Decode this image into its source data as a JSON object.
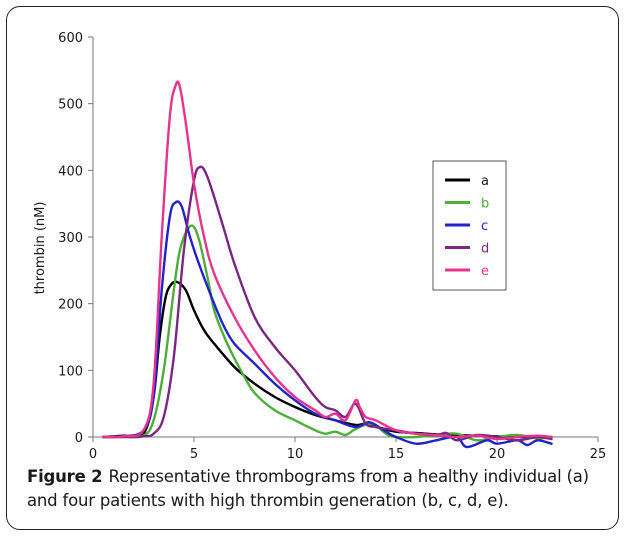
{
  "caption": {
    "label": "Figure 2",
    "text": "Representative thrombograms from a healthy individual (a) and four patients with high thrombin generation (b, c, d, e)."
  },
  "chart_data": {
    "type": "line",
    "title": "",
    "xlabel": "",
    "ylabel": "thrombin (nM)",
    "xlim": [
      0,
      25
    ],
    "ylim": [
      0,
      600
    ],
    "xticks": [
      0,
      5,
      10,
      15,
      20,
      25
    ],
    "yticks": [
      0,
      100,
      200,
      300,
      400,
      500,
      600
    ],
    "grid": false,
    "legend_position": "right",
    "series": [
      {
        "name": "a",
        "color": "#000000",
        "x": [
          0.5,
          1.5,
          2.5,
          3.0,
          3.3,
          3.6,
          3.9,
          4.2,
          4.6,
          5.0,
          5.5,
          6.0,
          7.0,
          8.0,
          9.0,
          10.0,
          11.0,
          12.0,
          13.0,
          13.5,
          14.0,
          15.0,
          16.0,
          17.0,
          18.0,
          19.0,
          20.0,
          21.0,
          22.0,
          22.7
        ],
        "values": [
          0,
          2,
          5,
          60,
          150,
          210,
          230,
          232,
          220,
          190,
          160,
          140,
          105,
          80,
          60,
          45,
          33,
          25,
          18,
          20,
          15,
          8,
          6,
          4,
          3,
          2,
          1,
          0,
          0,
          0
        ]
      },
      {
        "name": "b",
        "color": "#4caf37",
        "x": [
          0.5,
          1.5,
          2.5,
          3.0,
          3.5,
          4.0,
          4.3,
          4.7,
          5.0,
          5.3,
          5.7,
          6.0,
          6.5,
          7.0,
          7.5,
          8.0,
          9.0,
          10.0,
          11.0,
          11.5,
          12.0,
          12.5,
          13.0,
          13.8,
          14.5,
          15.0,
          16.0,
          17.0,
          18.0,
          19.0,
          20.0,
          21.0,
          22.0,
          22.7
        ],
        "values": [
          0,
          0,
          2,
          25,
          100,
          220,
          280,
          312,
          315,
          290,
          235,
          190,
          150,
          118,
          90,
          66,
          40,
          25,
          10,
          5,
          8,
          3,
          12,
          20,
          5,
          0,
          0,
          3,
          5,
          -5,
          0,
          3,
          -2,
          0
        ]
      },
      {
        "name": "c",
        "color": "#2222cc",
        "x": [
          0.5,
          1.5,
          2.5,
          3.0,
          3.4,
          3.8,
          4.1,
          4.4,
          4.8,
          5.3,
          6.0,
          6.5,
          7.0,
          8.0,
          9.0,
          10.0,
          11.0,
          12.0,
          13.0,
          13.7,
          14.5,
          15.0,
          16.0,
          17.0,
          18.0,
          18.5,
          19.5,
          20.0,
          21.0,
          21.5,
          22.0,
          22.7
        ],
        "values": [
          0,
          1,
          10,
          60,
          220,
          330,
          352,
          345,
          300,
          255,
          200,
          165,
          140,
          110,
          80,
          55,
          35,
          25,
          15,
          22,
          8,
          0,
          -10,
          -5,
          0,
          -15,
          -5,
          -10,
          -5,
          -12,
          -5,
          -10
        ]
      },
      {
        "name": "d",
        "color": "#7b2683",
        "x": [
          0.5,
          1.5,
          2.5,
          3.0,
          3.5,
          4.0,
          4.5,
          5.0,
          5.3,
          5.6,
          6.0,
          6.5,
          7.0,
          8.0,
          9.0,
          10.0,
          11.0,
          11.5,
          12.0,
          12.5,
          13.0,
          13.5,
          14.0,
          15.0,
          16.0,
          17.0,
          17.5,
          18.0,
          19.0,
          20.0,
          21.0,
          22.0,
          22.7
        ],
        "values": [
          0,
          0,
          1,
          5,
          30,
          120,
          280,
          385,
          405,
          395,
          360,
          310,
          260,
          180,
          135,
          100,
          60,
          45,
          40,
          30,
          50,
          20,
          15,
          10,
          5,
          3,
          6,
          -5,
          3,
          0,
          -5,
          0,
          -3
        ]
      },
      {
        "name": "e",
        "color": "#e8338e",
        "x": [
          0.5,
          1.5,
          2.5,
          3.0,
          3.4,
          3.8,
          4.1,
          4.3,
          4.6,
          5.0,
          5.5,
          6.0,
          7.0,
          8.0,
          9.0,
          10.0,
          11.0,
          11.5,
          12.0,
          12.5,
          13.0,
          13.2,
          13.5,
          14.0,
          15.0,
          16.0,
          17.0,
          18.0,
          19.0,
          20.0,
          21.0,
          22.0,
          22.7
        ],
        "values": [
          0,
          1,
          10,
          80,
          300,
          480,
          528,
          525,
          470,
          380,
          300,
          245,
          180,
          130,
          90,
          60,
          40,
          30,
          35,
          25,
          55,
          45,
          30,
          25,
          10,
          5,
          3,
          0,
          2,
          -3,
          0,
          2,
          0
        ]
      }
    ]
  }
}
